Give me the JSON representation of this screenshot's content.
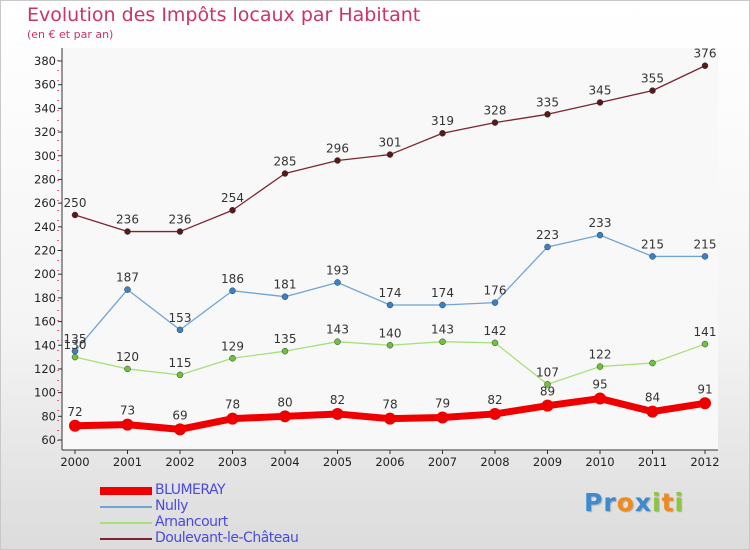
{
  "chart_data": {
    "type": "line",
    "title": "Evolution des Impôts locaux par Habitant",
    "subtitle": "(en € et par an)",
    "x": [
      "2000",
      "2001",
      "2002",
      "2003",
      "2004",
      "2005",
      "2006",
      "2007",
      "2008",
      "2009",
      "2010",
      "2011",
      "2012"
    ],
    "ylim": [
      60,
      380
    ],
    "yticks": [
      60,
      80,
      100,
      120,
      140,
      160,
      180,
      200,
      220,
      240,
      260,
      280,
      300,
      320,
      340,
      360,
      380
    ],
    "grid": false,
    "legend_position": "bottom-left",
    "series": [
      {
        "name": "Doulevant-le-Château",
        "color": "#7a2630",
        "marker": "#5a1818",
        "width": 1.3,
        "values": [
          250,
          236,
          236,
          254,
          285,
          296,
          301,
          319,
          328,
          335,
          345,
          355,
          376
        ],
        "labels": [
          "250",
          "236",
          "236",
          "254",
          "285",
          "296",
          "301",
          "319",
          "328",
          "335",
          "345",
          "355",
          "376"
        ]
      },
      {
        "name": "Nully",
        "color": "#6fa4d6",
        "marker": "#3a82c8",
        "width": 1.3,
        "values": [
          135,
          187,
          153,
          186,
          181,
          193,
          174,
          174,
          176,
          223,
          233,
          215,
          215
        ],
        "labels": [
          "135",
          "187",
          "153",
          "186",
          "181",
          "193",
          "174",
          "174",
          "176",
          "223",
          "233",
          "215",
          "215"
        ]
      },
      {
        "name": "Arnancourt",
        "color": "#a6e07a",
        "marker": "#6cc43a",
        "width": 1.3,
        "values": [
          130,
          120,
          115,
          129,
          135,
          143,
          140,
          143,
          142,
          107,
          122,
          125,
          141
        ],
        "labels": [
          "130",
          "120",
          "115",
          "129",
          "135",
          "143",
          "140",
          "143",
          "142",
          "107",
          "122",
          "",
          "141"
        ]
      },
      {
        "name": "BLUMERAY",
        "color": "#ee0000",
        "marker": "#ee0000",
        "width": 7,
        "values": [
          72,
          73,
          69,
          78,
          80,
          82,
          78,
          79,
          82,
          89,
          95,
          84,
          91
        ],
        "labels": [
          "72",
          "73",
          "69",
          "78",
          "80",
          "82",
          "78",
          "79",
          "82",
          "89",
          "95",
          "84",
          "91"
        ]
      }
    ]
  },
  "legend": [
    {
      "name": "BLUMERAY",
      "color": "#ee0000",
      "thickness": 8
    },
    {
      "name": "Nully",
      "color": "#6fa4d6",
      "thickness": 2
    },
    {
      "name": "Arnancourt",
      "color": "#a6e07a",
      "thickness": 2
    },
    {
      "name": "Doulevant-le-Château",
      "color": "#7a2630",
      "thickness": 2
    }
  ],
  "logo": {
    "letters": [
      {
        "ch": "P",
        "color": "#3f89cf"
      },
      {
        "ch": "r",
        "color": "#3f89cf"
      },
      {
        "ch": "o",
        "color": "#f08a1c"
      },
      {
        "ch": "x",
        "color": "#3f89cf"
      },
      {
        "ch": "i",
        "color": "#8cc63f"
      },
      {
        "ch": "t",
        "color": "#f08a1c"
      },
      {
        "ch": "i",
        "color": "#8cc63f"
      }
    ]
  }
}
